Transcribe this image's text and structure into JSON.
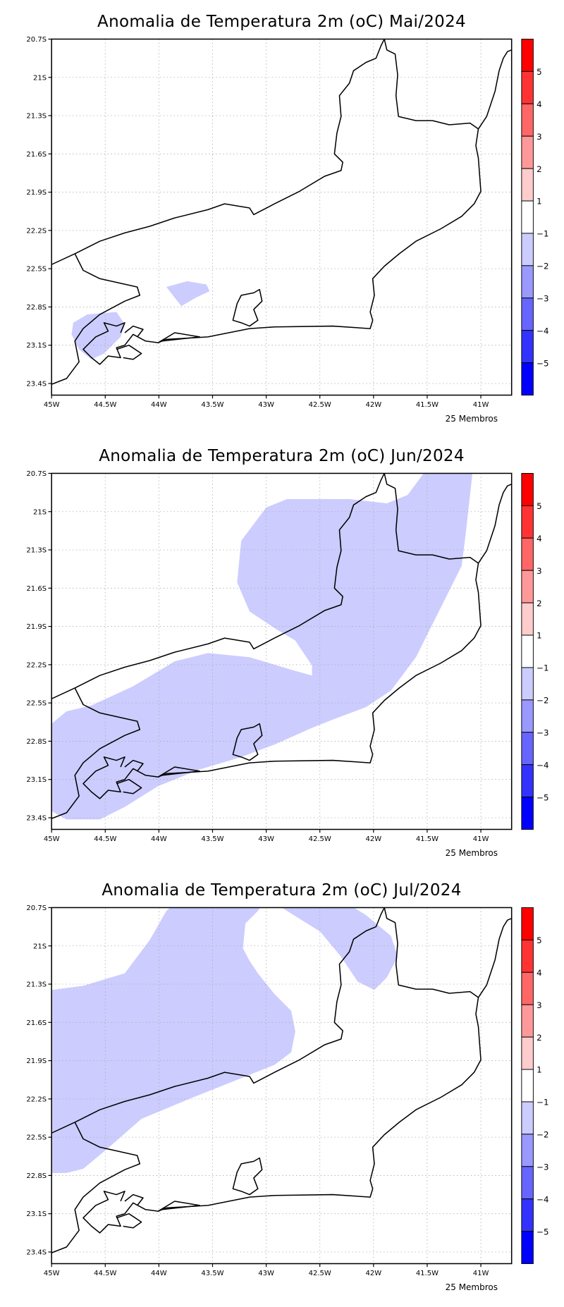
{
  "panels": [
    {
      "title": "Anomalia de Temperatura 2m (oC) Mai/2024",
      "footer": "25 Membros"
    },
    {
      "title": "Anomalia de Temperatura 2m (oC) Jun/2024",
      "footer": "25 Membros"
    },
    {
      "title": "Anomalia de Temperatura 2m (oC) Jul/2024",
      "footer": "25 Membros"
    }
  ],
  "axes": {
    "lat_ticks": [
      "20.7S",
      "21S",
      "21.3S",
      "21.6S",
      "21.9S",
      "22.2S",
      "22.5S",
      "22.8S",
      "23.1S",
      "23.4S"
    ],
    "lon_ticks": [
      "45W",
      "44.5W",
      "44W",
      "43.5W",
      "43W",
      "42.5W",
      "42W",
      "41.5W",
      "41W"
    ]
  },
  "colorbar": {
    "labels": [
      "5",
      "4",
      "3",
      "2",
      "1",
      "−1",
      "−2",
      "−3",
      "−4",
      "−5"
    ],
    "colors": [
      "#ff0000",
      "#ff3333",
      "#ff6666",
      "#ff9999",
      "#ffcccc",
      "#ffffff",
      "#ccccff",
      "#9999ff",
      "#6666ff",
      "#3333ff",
      "#0000ff"
    ]
  },
  "shading_color": "#ccccff"
}
